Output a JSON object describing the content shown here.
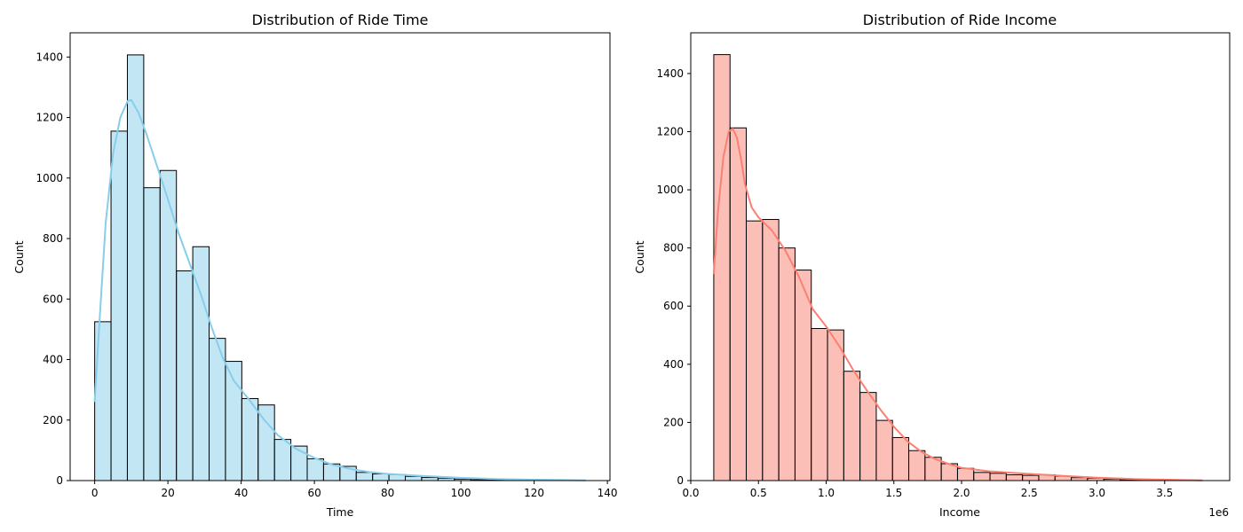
{
  "chart_data": [
    {
      "type": "bar",
      "title": "Distribution of Ride Time",
      "xlabel": "Time",
      "ylabel": "Count",
      "xlim": [
        -6.7,
        140.7
      ],
      "ylim": [
        0,
        1480
      ],
      "xticks": [
        0,
        20,
        40,
        60,
        80,
        100,
        120,
        140
      ],
      "yticks": [
        0,
        200,
        400,
        600,
        800,
        1000,
        1200,
        1400
      ],
      "bar_color": "#87ceeb",
      "bar_fill_opacity": 0.5,
      "kde_color": "#87ceeb",
      "bins": {
        "start": 0,
        "width": 4.464,
        "counts": [
          525,
          1155,
          1407,
          968,
          1025,
          693,
          773,
          470,
          394,
          271,
          250,
          136,
          114,
          72,
          55,
          47,
          27,
          22,
          20,
          14,
          10,
          8,
          5,
          3,
          2,
          1,
          1,
          1,
          1,
          1
        ]
      },
      "kde": {
        "x": [
          0,
          1.5,
          3,
          5,
          7,
          9,
          10,
          12,
          14,
          17,
          20,
          23,
          26,
          29,
          32,
          35,
          38,
          42,
          46,
          50,
          55,
          60,
          65,
          70,
          75,
          80,
          90,
          100,
          110,
          120,
          134
        ],
        "y": [
          260,
          560,
          850,
          1080,
          1200,
          1255,
          1258,
          1215,
          1150,
          1040,
          930,
          815,
          715,
          615,
          505,
          405,
          330,
          270,
          205,
          150,
          105,
          75,
          52,
          38,
          28,
          22,
          15,
          9,
          5,
          3,
          1
        ]
      }
    },
    {
      "type": "bar",
      "title": "Distribution of Ride Income",
      "xlabel": "Income",
      "ylabel": "Count",
      "offset_label": "1e6",
      "xlim": [
        0,
        3.98
      ],
      "ylim": [
        0,
        1540
      ],
      "xticks": [
        0.0,
        0.5,
        1.0,
        1.5,
        2.0,
        2.5,
        3.0,
        3.5
      ],
      "xtick_labels": [
        "0.0",
        "0.5",
        "1.0",
        "1.5",
        "2.0",
        "2.5",
        "3.0",
        "3.5"
      ],
      "yticks": [
        0,
        200,
        400,
        600,
        800,
        1000,
        1200,
        1400
      ],
      "bar_color": "#fa8072",
      "bar_fill_opacity": 0.5,
      "kde_color": "#fa8072",
      "bins": {
        "start": 0.17,
        "width": 0.12,
        "counts": [
          1465,
          1213,
          893,
          898,
          800,
          724,
          523,
          518,
          376,
          303,
          207,
          148,
          103,
          80,
          58,
          42,
          28,
          25,
          20,
          18,
          20,
          15,
          10,
          8,
          5,
          3,
          2,
          2,
          1,
          1
        ]
      },
      "kde": {
        "x": [
          0.17,
          0.2,
          0.24,
          0.28,
          0.31,
          0.34,
          0.37,
          0.4,
          0.45,
          0.5,
          0.6,
          0.7,
          0.8,
          0.9,
          1.0,
          1.1,
          1.2,
          1.3,
          1.4,
          1.5,
          1.6,
          1.7,
          1.8,
          1.9,
          2.0,
          2.2,
          2.4,
          2.6,
          2.8,
          3.0,
          3.3,
          3.6,
          3.78
        ],
        "y": [
          710,
          920,
          1110,
          1200,
          1210,
          1180,
          1110,
          1020,
          940,
          905,
          860,
          790,
          700,
          590,
          530,
          460,
          380,
          310,
          245,
          185,
          135,
          100,
          75,
          58,
          44,
          32,
          26,
          20,
          15,
          10,
          5,
          2,
          1
        ]
      }
    }
  ]
}
